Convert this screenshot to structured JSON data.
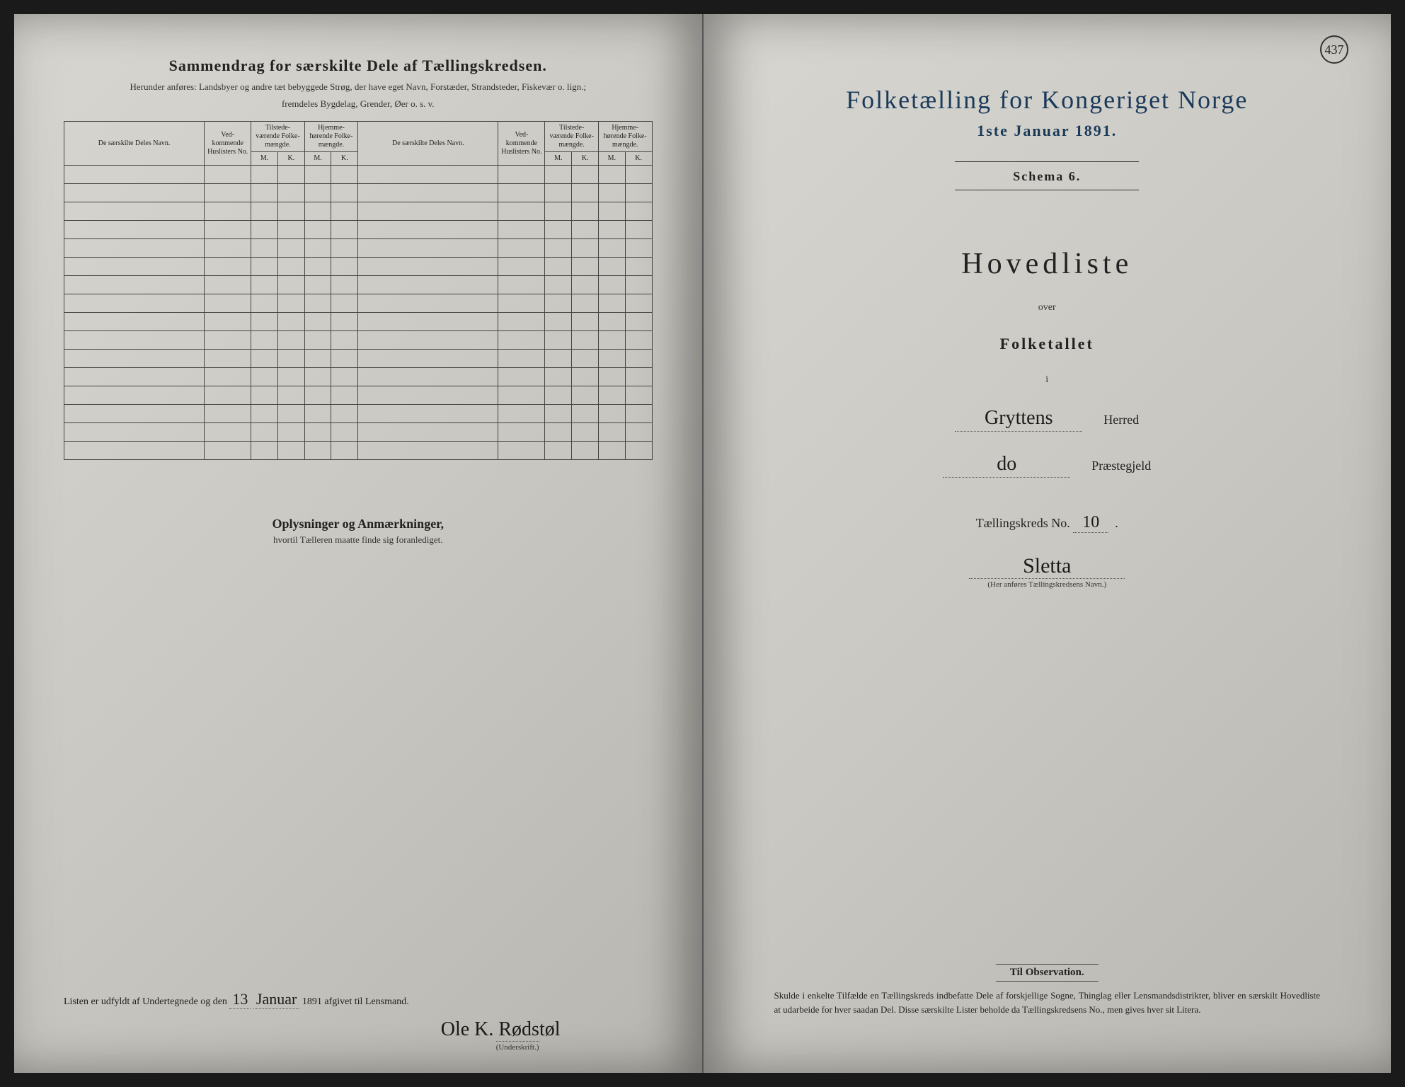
{
  "left": {
    "title": "Sammendrag for særskilte Dele af Tællingskredsen.",
    "subtitle1": "Herunder anføres: Landsbyer og andre tæt bebyggede Strøg, der have eget Navn, Forstæder, Strandsteder, Fiskevær o. lign.;",
    "subtitle2": "fremdeles Bygdelag, Grender, Øer o. s. v.",
    "headers": {
      "name": "De særskilte Deles Navn.",
      "husl": "Ved-\nkommende\nHuslisters\nNo.",
      "tilstede": "Tilstede-\nværende\nFolke-\nmængde.",
      "hjemme": "Hjemme-\nhørende\nFolke-\nmængde.",
      "m": "M.",
      "k": "K."
    },
    "oplys_title": "Oplysninger og Anmærkninger,",
    "oplys_sub": "hvortil Tælleren maatte finde sig foranlediget.",
    "signature_prefix": "Listen er udfyldt af Undertegnede og den",
    "signature_day": "13",
    "signature_month": "Januar",
    "signature_year": "1891 afgivet til Lensmand.",
    "signer": "Ole K. Rødstøl",
    "signer_label": "(Underskrift.)"
  },
  "right": {
    "page_num": "437",
    "census_title": "Folketælling for Kongeriget Norge",
    "census_date": "1ste Januar 1891.",
    "schema": "Schema 6.",
    "hovedliste": "Hovedliste",
    "over": "over",
    "folketallet": "Folketallet",
    "i": "i",
    "herred_value": "Gryttens",
    "herred_label": "Herred",
    "praeste_value": "do",
    "praeste_label": "Præstegjeld",
    "kreds_label": "Tællingskreds No.",
    "kreds_no": "10",
    "kreds_name": "Sletta",
    "kreds_note": "(Her anføres Tællingskredsens Navn.)",
    "obs_title": "Til Observation.",
    "obs_text": "Skulde i enkelte Tilfælde en Tællingskreds indbefatte Dele af forskjellige Sogne, Thinglag eller Lensmandsdistrikter, bliver en særskilt Hovedliste at udarbeide for hver saadan Del. Disse særskilte Lister beholde da Tællingskredsens No., men gives hver sit Litera."
  },
  "colors": {
    "paper": "#cac8c2",
    "ink": "#222222",
    "blue_ink": "#1a3a5a",
    "background": "#1a1a1a"
  }
}
